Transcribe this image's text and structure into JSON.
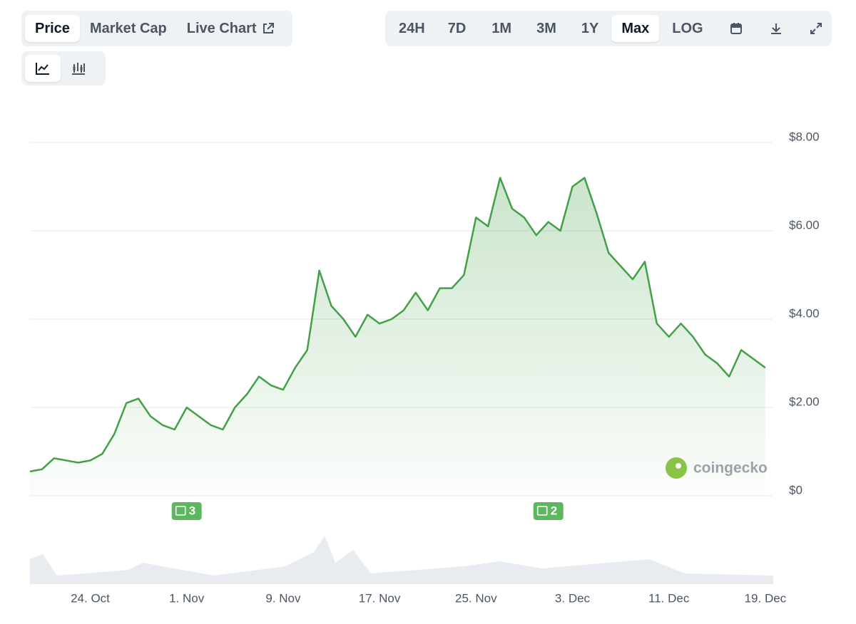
{
  "toolbar": {
    "tabs": [
      "Price",
      "Market Cap",
      "Live Chart"
    ],
    "ranges": [
      "24H",
      "7D",
      "1M",
      "3M",
      "1Y",
      "Max",
      "LOG"
    ]
  },
  "chart_data": {
    "type": "line",
    "watermark": "coingecko",
    "color": "#43a047",
    "categories": [
      "19. Oct",
      "20. Oct",
      "21. Oct",
      "22. Oct",
      "23. Oct",
      "24. Oct",
      "25. Oct",
      "26. Oct",
      "27. Oct",
      "28. Oct",
      "29. Oct",
      "30. Oct",
      "31. Oct",
      "1. Nov",
      "2. Nov",
      "3. Nov",
      "4. Nov",
      "5. Nov",
      "6. Nov",
      "7. Nov",
      "8. Nov",
      "9. Nov",
      "10. Nov",
      "11. Nov",
      "12. Nov",
      "13. Nov",
      "14. Nov",
      "15. Nov",
      "16. Nov",
      "17. Nov",
      "18. Nov",
      "19. Nov",
      "20. Nov",
      "21. Nov",
      "22. Nov",
      "23. Nov",
      "24. Nov",
      "25. Nov",
      "26. Nov",
      "27. Nov",
      "28. Nov",
      "29. Nov",
      "30. Nov",
      "1. Dec",
      "2. Dec",
      "3. Dec",
      "4. Dec",
      "5. Dec",
      "6. Dec",
      "7. Dec",
      "8. Dec",
      "9. Dec",
      "10. Dec",
      "11. Dec",
      "12. Dec",
      "13. Dec",
      "14. Dec",
      "15. Dec",
      "16. Dec",
      "17. Dec",
      "18. Dec",
      "19. Dec"
    ],
    "values": [
      0.55,
      0.6,
      0.85,
      0.8,
      0.75,
      0.8,
      0.95,
      1.4,
      2.1,
      2.2,
      1.8,
      1.6,
      1.5,
      2.0,
      1.8,
      1.6,
      1.5,
      2.0,
      2.3,
      2.7,
      2.5,
      2.4,
      2.9,
      3.3,
      5.1,
      4.3,
      4.0,
      3.6,
      4.1,
      3.9,
      4.0,
      4.2,
      4.6,
      4.2,
      4.7,
      4.7,
      5.0,
      6.3,
      6.1,
      7.2,
      6.5,
      6.3,
      5.9,
      6.2,
      6.0,
      7.0,
      7.2,
      6.4,
      5.5,
      5.2,
      4.9,
      5.3,
      3.9,
      3.6,
      3.9,
      3.6,
      3.2,
      3.0,
      2.7,
      3.3,
      3.1,
      2.9
    ],
    "xticks": [
      "24. Oct",
      "1. Nov",
      "9. Nov",
      "17. Nov",
      "25. Nov",
      "3. Dec",
      "11. Dec",
      "19. Dec"
    ],
    "ylim": [
      0,
      8
    ],
    "yticks": [
      {
        "value": 0,
        "label": "$0"
      },
      {
        "value": 2,
        "label": "$2.00"
      },
      {
        "value": 4,
        "label": "$4.00"
      },
      {
        "value": 6,
        "label": "$6.00"
      },
      {
        "value": 8,
        "label": "$8.00"
      }
    ],
    "grid": true,
    "annotations": [
      {
        "x": "1. Nov",
        "count": 3
      },
      {
        "x": "1. Dec",
        "count": 2
      }
    ]
  }
}
